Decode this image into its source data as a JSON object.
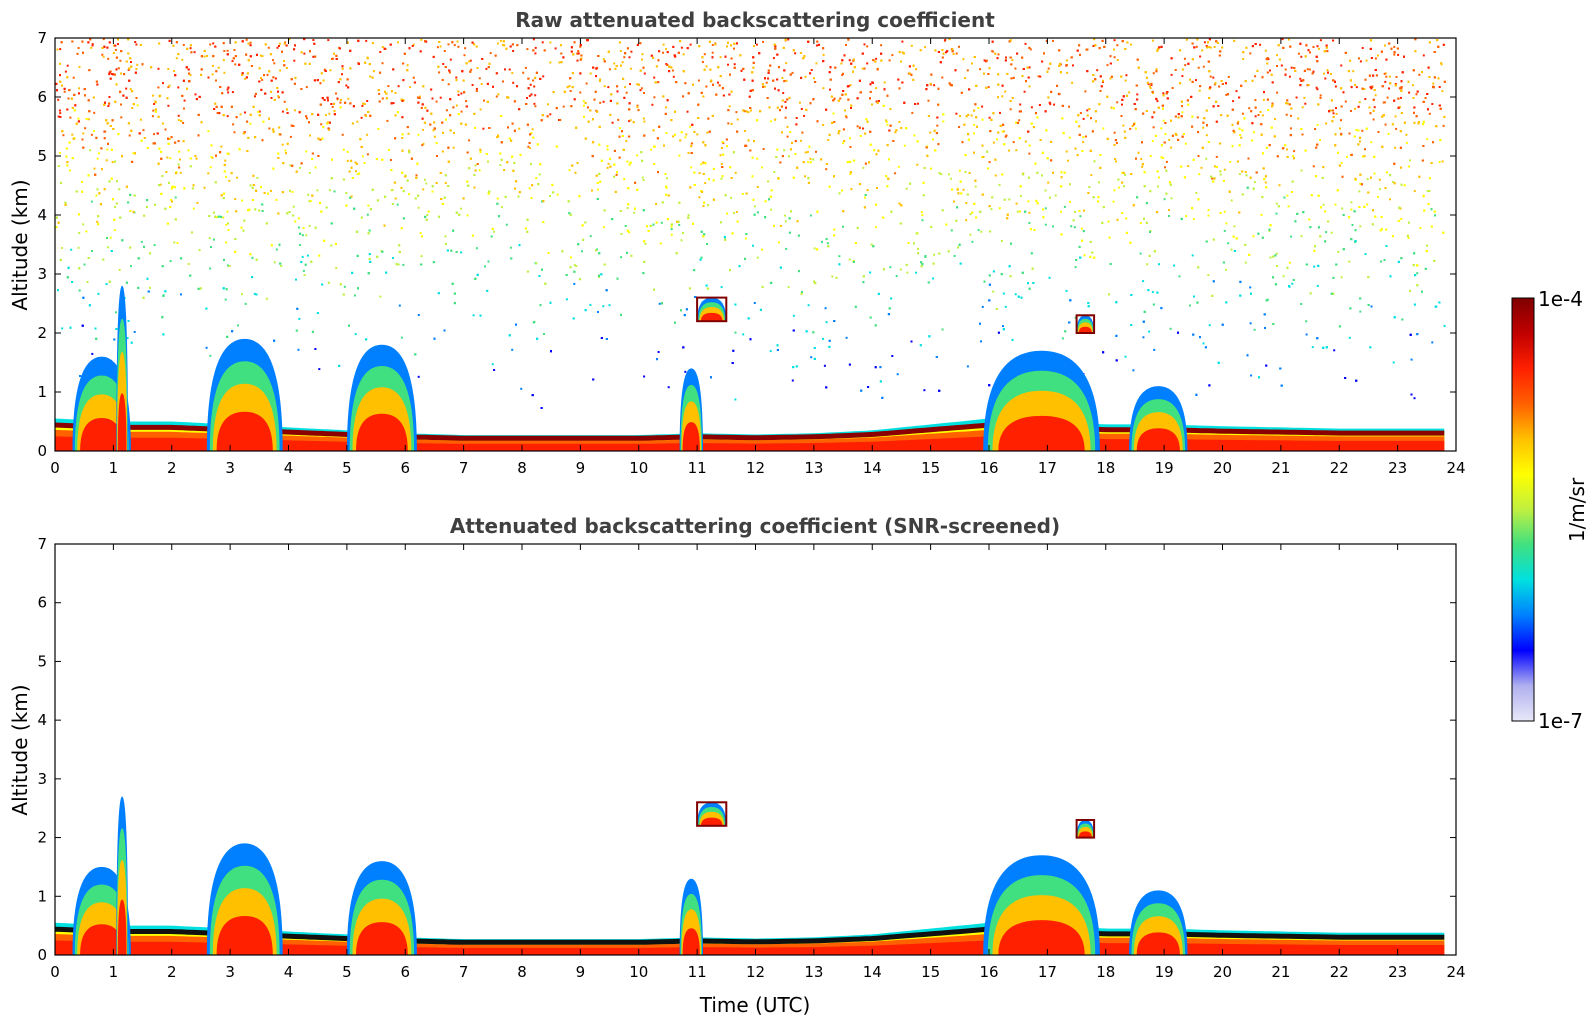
{
  "chart_data": [
    {
      "type": "heatmap",
      "title": "Raw attenuated backscattering coefficient",
      "xlabel": "",
      "ylabel": "Altitude (km)",
      "xlim": [
        0,
        24
      ],
      "ylim": [
        0,
        7
      ],
      "xticks": [
        0,
        1,
        2,
        3,
        4,
        5,
        6,
        7,
        8,
        9,
        10,
        11,
        12,
        13,
        14,
        15,
        16,
        17,
        18,
        19,
        20,
        21,
        22,
        23,
        24
      ],
      "yticks": [
        0,
        1,
        2,
        3,
        4,
        5,
        6,
        7
      ],
      "data_extent_hours": [
        0,
        23.8
      ],
      "boundary_layer_top_km": [
        [
          0,
          0.55
        ],
        [
          1,
          0.5
        ],
        [
          2,
          0.5
        ],
        [
          3,
          0.45
        ],
        [
          4,
          0.4
        ],
        [
          5,
          0.35
        ],
        [
          6,
          0.3
        ],
        [
          7,
          0.27
        ],
        [
          8,
          0.27
        ],
        [
          9,
          0.27
        ],
        [
          10,
          0.27
        ],
        [
          11,
          0.3
        ],
        [
          12,
          0.28
        ],
        [
          13,
          0.3
        ],
        [
          14,
          0.35
        ],
        [
          15,
          0.45
        ],
        [
          16,
          0.55
        ],
        [
          17,
          0.5
        ],
        [
          18,
          0.45
        ],
        [
          19,
          0.45
        ],
        [
          20,
          0.42
        ],
        [
          21,
          0.4
        ],
        [
          22,
          0.38
        ],
        [
          23,
          0.38
        ],
        [
          23.8,
          0.38
        ]
      ],
      "cloud_features": [
        {
          "time_h": [
            0.3,
            1.3
          ],
          "top_km": 1.6,
          "note": "convective plume"
        },
        {
          "time_h": [
            1.05,
            1.25
          ],
          "top_km": 2.8
        },
        {
          "time_h": [
            2.6,
            3.9
          ],
          "top_km": 1.9
        },
        {
          "time_h": [
            5.0,
            6.2
          ],
          "top_km": 1.8
        },
        {
          "time_h": [
            10.7,
            11.1
          ],
          "top_km": 1.4
        },
        {
          "time_h": [
            11.0,
            11.5
          ],
          "top_km": 2.6,
          "base_km": 2.2
        },
        {
          "time_h": [
            15.9,
            17.9
          ],
          "top_km": 1.7
        },
        {
          "time_h": [
            17.5,
            17.8
          ],
          "top_km": 2.3,
          "base_km": 2.0
        },
        {
          "time_h": [
            18.4,
            19.4
          ],
          "top_km": 1.1
        }
      ],
      "noise_field": "speckled signal increasing with altitude above ~2 km"
    },
    {
      "type": "heatmap",
      "title": "Attenuated backscattering coefficient (SNR-screened)",
      "xlabel": "Time (UTC)",
      "ylabel": "Altitude (km)",
      "xlim": [
        0,
        24
      ],
      "ylim": [
        0,
        7
      ],
      "xticks": [
        0,
        1,
        2,
        3,
        4,
        5,
        6,
        7,
        8,
        9,
        10,
        11,
        12,
        13,
        14,
        15,
        16,
        17,
        18,
        19,
        20,
        21,
        22,
        23,
        24
      ],
      "yticks": [
        0,
        1,
        2,
        3,
        4,
        5,
        6,
        7
      ],
      "data_extent_hours": [
        0,
        23.8
      ],
      "boundary_layer_top_km": [
        [
          0,
          0.55
        ],
        [
          1,
          0.5
        ],
        [
          2,
          0.5
        ],
        [
          3,
          0.45
        ],
        [
          4,
          0.4
        ],
        [
          5,
          0.35
        ],
        [
          6,
          0.3
        ],
        [
          7,
          0.27
        ],
        [
          8,
          0.27
        ],
        [
          9,
          0.27
        ],
        [
          10,
          0.27
        ],
        [
          11,
          0.3
        ],
        [
          12,
          0.28
        ],
        [
          13,
          0.3
        ],
        [
          14,
          0.35
        ],
        [
          15,
          0.45
        ],
        [
          16,
          0.55
        ],
        [
          17,
          0.5
        ],
        [
          18,
          0.45
        ],
        [
          19,
          0.45
        ],
        [
          20,
          0.42
        ],
        [
          21,
          0.4
        ],
        [
          22,
          0.38
        ],
        [
          23,
          0.38
        ],
        [
          23.8,
          0.38
        ]
      ],
      "cloud_features": [
        {
          "time_h": [
            0.3,
            1.3
          ],
          "top_km": 1.5
        },
        {
          "time_h": [
            1.05,
            1.25
          ],
          "top_km": 2.7
        },
        {
          "time_h": [
            2.6,
            3.9
          ],
          "top_km": 1.9
        },
        {
          "time_h": [
            5.0,
            6.2
          ],
          "top_km": 1.6
        },
        {
          "time_h": [
            10.7,
            11.1
          ],
          "top_km": 1.3
        },
        {
          "time_h": [
            11.0,
            11.5
          ],
          "top_km": 2.6,
          "base_km": 2.2
        },
        {
          "time_h": [
            15.9,
            17.9
          ],
          "top_km": 1.7
        },
        {
          "time_h": [
            17.5,
            17.8
          ],
          "top_km": 2.3,
          "base_km": 2.0
        },
        {
          "time_h": [
            18.4,
            19.4
          ],
          "top_km": 1.1
        }
      ],
      "noise_field": "screened (blank above boundary layer)"
    }
  ],
  "colorbar": {
    "label": "1/m/sr",
    "max_label": "1e-4",
    "min_label": "1e-7",
    "scale": "log",
    "colormap": [
      "#e8e8f8",
      "#b0b0f0",
      "#0000ff",
      "#0080ff",
      "#00e0e0",
      "#40e080",
      "#c0f040",
      "#ffff00",
      "#ffc000",
      "#ff6000",
      "#ff2000",
      "#c00000",
      "#800000"
    ]
  }
}
